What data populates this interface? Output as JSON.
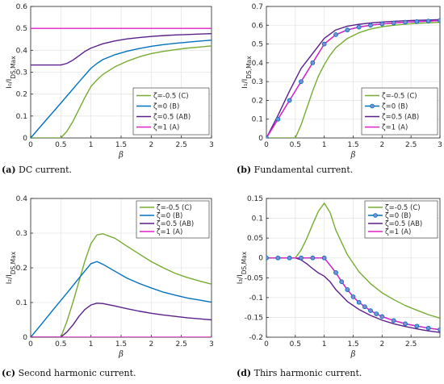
{
  "colors": {
    "green": "#77ac30",
    "blue": "#0072bd",
    "purple": "#5b1f8a",
    "magenta": "#e020c8",
    "marker_fill": "#7a8fd6"
  },
  "chart_data": [
    {
      "type": "line",
      "xlabel": "β",
      "ylabel": "I₀/I_DS,Max",
      "caption_tag": "(a)",
      "caption_text": " DC current.",
      "xlim": [
        0,
        3
      ],
      "ylim": [
        0,
        0.6
      ],
      "xticks": [
        0,
        0.5,
        1,
        1.5,
        2,
        2.5,
        3
      ],
      "xticklabels": [
        "0",
        "0.5",
        "1",
        "1.5",
        "2",
        "2.5",
        "3"
      ],
      "yticks": [
        0,
        0.1,
        0.2,
        0.3,
        0.4,
        0.5,
        0.6
      ],
      "yticklabels": [
        "0",
        "0.1",
        "0.2",
        "0.3",
        "0.4",
        "0.5",
        "0.6"
      ],
      "grid": true,
      "legend_position": "bottom-right",
      "series": [
        {
          "name": "ζ=-0.5 (C)",
          "color": "green",
          "x": [
            0,
            0.5,
            0.6,
            0.7,
            0.8,
            0.9,
            1.0,
            1.1,
            1.2,
            1.4,
            1.6,
            1.8,
            2.0,
            2.2,
            2.4,
            2.6,
            2.8,
            3.0
          ],
          "y": [
            0,
            0,
            0.03,
            0.075,
            0.13,
            0.185,
            0.235,
            0.265,
            0.29,
            0.325,
            0.35,
            0.37,
            0.385,
            0.395,
            0.403,
            0.41,
            0.415,
            0.42
          ]
        },
        {
          "name": "ζ=0 (B)",
          "color": "blue",
          "x": [
            0,
            0.2,
            0.4,
            0.6,
            0.8,
            1.0,
            1.1,
            1.2,
            1.4,
            1.6,
            1.8,
            2.0,
            2.2,
            2.4,
            2.6,
            2.8,
            3.0
          ],
          "y": [
            0,
            0.064,
            0.127,
            0.191,
            0.255,
            0.318,
            0.34,
            0.358,
            0.38,
            0.396,
            0.408,
            0.418,
            0.426,
            0.432,
            0.437,
            0.442,
            0.446
          ]
        },
        {
          "name": "ζ=0.5 (AB)",
          "color": "purple",
          "x": [
            0,
            0.5,
            0.6,
            0.7,
            0.8,
            0.9,
            1.0,
            1.1,
            1.2,
            1.4,
            1.6,
            1.8,
            2.0,
            2.2,
            2.4,
            2.6,
            2.8,
            3.0
          ],
          "y": [
            0.333,
            0.333,
            0.34,
            0.355,
            0.375,
            0.395,
            0.41,
            0.42,
            0.43,
            0.443,
            0.452,
            0.458,
            0.463,
            0.467,
            0.47,
            0.472,
            0.474,
            0.476
          ]
        },
        {
          "name": "ζ=1 (A)",
          "color": "magenta",
          "x": [
            0,
            3
          ],
          "y": [
            0.5,
            0.5
          ]
        }
      ]
    },
    {
      "type": "line",
      "xlabel": "β",
      "ylabel": "I₁/I_DS,Max",
      "caption_tag": "(b)",
      "caption_text": " Fundamental current.",
      "xlim": [
        0,
        3
      ],
      "ylim": [
        0,
        0.7
      ],
      "xticks": [
        0,
        0.5,
        1,
        1.5,
        2,
        2.5,
        3
      ],
      "xticklabels": [
        "0",
        "0.5",
        "1",
        "1.5",
        "2",
        "2.5",
        "3"
      ],
      "yticks": [
        0,
        0.1,
        0.2,
        0.3,
        0.4,
        0.5,
        0.6,
        0.7
      ],
      "yticklabels": [
        "0",
        "0.1",
        "0.2",
        "0.3",
        "0.4",
        "0.5",
        "0.6",
        "0.7"
      ],
      "grid": true,
      "legend_position": "bottom-right",
      "series": [
        {
          "name": "ζ=-0.5 (C)",
          "color": "green",
          "x": [
            0,
            0.5,
            0.6,
            0.7,
            0.8,
            0.9,
            1.0,
            1.1,
            1.2,
            1.4,
            1.6,
            1.8,
            2.0,
            2.2,
            2.4,
            2.6,
            2.8,
            3.0
          ],
          "y": [
            0,
            0,
            0.07,
            0.16,
            0.25,
            0.33,
            0.39,
            0.44,
            0.48,
            0.53,
            0.56,
            0.58,
            0.592,
            0.6,
            0.606,
            0.61,
            0.613,
            0.616
          ]
        },
        {
          "name": "ζ=0 (B)",
          "color": "blue",
          "markers": true,
          "x": [
            0,
            0.2,
            0.4,
            0.6,
            0.8,
            1.0,
            1.2,
            1.4,
            1.6,
            1.8,
            2.0,
            2.2,
            2.4,
            2.6,
            2.8,
            3.0
          ],
          "y": [
            0,
            0.1,
            0.2,
            0.3,
            0.4,
            0.5,
            0.55,
            0.575,
            0.59,
            0.6,
            0.607,
            0.612,
            0.616,
            0.619,
            0.622,
            0.625
          ]
        },
        {
          "name": "ζ=0.5 (AB)",
          "color": "purple",
          "x": [
            0,
            0.2,
            0.4,
            0.5,
            0.6,
            0.8,
            1.0,
            1.2,
            1.4,
            1.6,
            1.8,
            2.0,
            2.2,
            2.4,
            2.6,
            2.8,
            3.0
          ],
          "y": [
            0,
            0.12,
            0.25,
            0.31,
            0.37,
            0.45,
            0.53,
            0.575,
            0.595,
            0.605,
            0.612,
            0.617,
            0.621,
            0.624,
            0.626,
            0.628,
            0.63
          ]
        },
        {
          "name": "ζ=1 (A)",
          "color": "magenta",
          "x": [
            0,
            0.2,
            0.4,
            0.6,
            0.8,
            1.0,
            1.2,
            1.4,
            1.6,
            1.8,
            2.0,
            2.2,
            2.4,
            2.6,
            2.8,
            3.0
          ],
          "y": [
            0,
            0.1,
            0.2,
            0.3,
            0.4,
            0.5,
            0.55,
            0.575,
            0.59,
            0.6,
            0.607,
            0.612,
            0.616,
            0.619,
            0.622,
            0.625
          ]
        }
      ]
    },
    {
      "type": "line",
      "xlabel": "β",
      "ylabel": "I₂/I_DS,Max",
      "caption_tag": "(c)",
      "caption_text": " Second harmonic current.",
      "xlim": [
        0,
        3
      ],
      "ylim": [
        0,
        0.4
      ],
      "xticks": [
        0,
        0.5,
        1,
        1.5,
        2,
        2.5,
        3
      ],
      "xticklabels": [
        "0",
        "0.5",
        "1",
        "1.5",
        "2",
        "2.5",
        "3"
      ],
      "yticks": [
        0,
        0.1,
        0.2,
        0.3,
        0.4
      ],
      "yticklabels": [
        "0",
        "0.1",
        "0.2",
        "0.3",
        "0.4"
      ],
      "grid": true,
      "legend_position": "top-right",
      "series": [
        {
          "name": "ζ=-0.5 (C)",
          "color": "green",
          "x": [
            0,
            0.5,
            0.6,
            0.7,
            0.8,
            0.9,
            1.0,
            1.1,
            1.2,
            1.4,
            1.6,
            1.8,
            2.0,
            2.2,
            2.4,
            2.6,
            2.8,
            3.0
          ],
          "y": [
            0,
            0,
            0.045,
            0.1,
            0.16,
            0.22,
            0.27,
            0.295,
            0.298,
            0.285,
            0.262,
            0.24,
            0.218,
            0.2,
            0.184,
            0.172,
            0.162,
            0.153
          ]
        },
        {
          "name": "ζ=0 (B)",
          "color": "blue",
          "x": [
            0,
            0.2,
            0.4,
            0.6,
            0.8,
            1.0,
            1.1,
            1.2,
            1.4,
            1.6,
            1.8,
            2.0,
            2.2,
            2.4,
            2.6,
            2.8,
            3.0
          ],
          "y": [
            0,
            0.042,
            0.085,
            0.127,
            0.17,
            0.212,
            0.218,
            0.21,
            0.19,
            0.17,
            0.155,
            0.142,
            0.13,
            0.121,
            0.113,
            0.107,
            0.101
          ]
        },
        {
          "name": "ζ=0.5 (AB)",
          "color": "purple",
          "x": [
            0,
            0.5,
            0.6,
            0.7,
            0.8,
            0.9,
            1.0,
            1.1,
            1.2,
            1.4,
            1.6,
            1.8,
            2.0,
            2.2,
            2.4,
            2.6,
            2.8,
            3.0
          ],
          "y": [
            0,
            0,
            0.015,
            0.035,
            0.06,
            0.08,
            0.093,
            0.098,
            0.097,
            0.09,
            0.082,
            0.075,
            0.069,
            0.064,
            0.06,
            0.056,
            0.053,
            0.05
          ]
        },
        {
          "name": "ζ=1 (A)",
          "color": "magenta",
          "x": [
            0,
            3
          ],
          "y": [
            0,
            0
          ]
        }
      ]
    },
    {
      "type": "line",
      "xlabel": "β",
      "ylabel": "I₃/I_DS,Max",
      "caption_tag": "(d)",
      "caption_text": " Thirs harmonic current.",
      "xlim": [
        0,
        3
      ],
      "ylim": [
        -0.2,
        0.15
      ],
      "xticks": [
        0,
        0.5,
        1,
        1.5,
        2,
        2.5
      ],
      "xticklabels": [
        "0",
        "0.5",
        "1",
        "1.5",
        "2",
        "2.5"
      ],
      "yticks": [
        -0.2,
        -0.15,
        -0.1,
        -0.05,
        0,
        0.05,
        0.1,
        0.15
      ],
      "yticklabels": [
        "-0.2",
        "-0.15",
        "-0.1",
        "-0.05",
        "0",
        "0.05",
        "0.1",
        "0.15"
      ],
      "grid": true,
      "legend_position": "top-right",
      "series": [
        {
          "name": "ζ=-0.5 (C)",
          "color": "green",
          "x": [
            0,
            0.5,
            0.6,
            0.7,
            0.8,
            0.9,
            1.0,
            1.1,
            1.2,
            1.4,
            1.6,
            1.8,
            2.0,
            2.2,
            2.4,
            2.6,
            2.8,
            3.0
          ],
          "y": [
            0,
            0,
            0.02,
            0.05,
            0.085,
            0.118,
            0.138,
            0.115,
            0.07,
            0.008,
            -0.035,
            -0.065,
            -0.088,
            -0.105,
            -0.12,
            -0.132,
            -0.143,
            -0.152
          ]
        },
        {
          "name": "ζ=0 (B)",
          "color": "blue",
          "markers": true,
          "x": [
            0,
            0.2,
            0.4,
            0.6,
            0.8,
            1.0,
            1.2,
            1.3,
            1.4,
            1.5,
            1.6,
            1.7,
            1.8,
            1.9,
            2.0,
            2.2,
            2.4,
            2.6,
            2.8,
            3.0
          ],
          "y": [
            0,
            0,
            0,
            0,
            0,
            0,
            -0.037,
            -0.06,
            -0.08,
            -0.098,
            -0.112,
            -0.123,
            -0.133,
            -0.141,
            -0.148,
            -0.158,
            -0.166,
            -0.172,
            -0.177,
            -0.181
          ]
        },
        {
          "name": "ζ=0.5 (AB)",
          "color": "purple",
          "x": [
            0,
            0.5,
            0.6,
            0.7,
            0.8,
            0.9,
            1.0,
            1.1,
            1.2,
            1.4,
            1.6,
            1.8,
            2.0,
            2.2,
            2.4,
            2.6,
            2.8,
            3.0
          ],
          "y": [
            0,
            0,
            -0.005,
            -0.015,
            -0.027,
            -0.038,
            -0.046,
            -0.06,
            -0.08,
            -0.11,
            -0.13,
            -0.145,
            -0.157,
            -0.166,
            -0.173,
            -0.179,
            -0.184,
            -0.188
          ]
        },
        {
          "name": "ζ=1 (A)",
          "color": "magenta",
          "x": [
            0,
            0.2,
            0.4,
            0.6,
            0.8,
            1.0,
            1.2,
            1.3,
            1.4,
            1.5,
            1.6,
            1.7,
            1.8,
            1.9,
            2.0,
            2.2,
            2.4,
            2.6,
            2.8,
            3.0
          ],
          "y": [
            0,
            0,
            0,
            0,
            0,
            0,
            -0.037,
            -0.06,
            -0.08,
            -0.098,
            -0.112,
            -0.123,
            -0.133,
            -0.141,
            -0.148,
            -0.158,
            -0.166,
            -0.172,
            -0.177,
            -0.181
          ]
        }
      ]
    }
  ]
}
